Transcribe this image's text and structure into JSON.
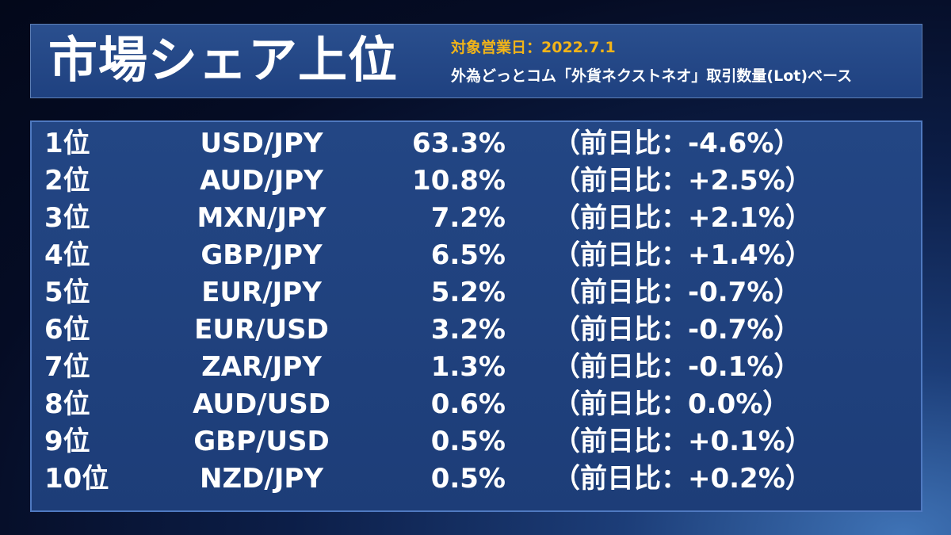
{
  "header": {
    "title": "市場シェア上位",
    "date_label": "対象営業日：2022.7.1",
    "basis_label": "外為どっとコム「外貨ネクストネオ」取引数量(Lot)ベース"
  },
  "colors": {
    "accent": "#f2b418",
    "panel": "#1f4180",
    "panel_border": "#4f79c0",
    "text": "#ffffff"
  },
  "rows": [
    {
      "rank": "1位",
      "pair": "USD/JPY",
      "share": "63.3%",
      "change": "（前日比：-4.6%）"
    },
    {
      "rank": "2位",
      "pair": "AUD/JPY",
      "share": "10.8%",
      "change": "（前日比：+2.5%）"
    },
    {
      "rank": "3位",
      "pair": "MXN/JPY",
      "share": "7.2%",
      "change": "（前日比：+2.1%）"
    },
    {
      "rank": "4位",
      "pair": "GBP/JPY",
      "share": "6.5%",
      "change": "（前日比：+1.4%）"
    },
    {
      "rank": "5位",
      "pair": "EUR/JPY",
      "share": "5.2%",
      "change": "（前日比：-0.7%）"
    },
    {
      "rank": "6位",
      "pair": "EUR/USD",
      "share": "3.2%",
      "change": "（前日比：-0.7%）"
    },
    {
      "rank": "7位",
      "pair": "ZAR/JPY",
      "share": "1.3%",
      "change": "（前日比：-0.1%）"
    },
    {
      "rank": "8位",
      "pair": "AUD/USD",
      "share": "0.6%",
      "change": "（前日比：0.0%）"
    },
    {
      "rank": "9位",
      "pair": "GBP/USD",
      "share": "0.5%",
      "change": "（前日比：+0.1%）"
    },
    {
      "rank": "10位",
      "pair": "NZD/JPY",
      "share": "0.5%",
      "change": "（前日比：+0.2%）"
    }
  ]
}
